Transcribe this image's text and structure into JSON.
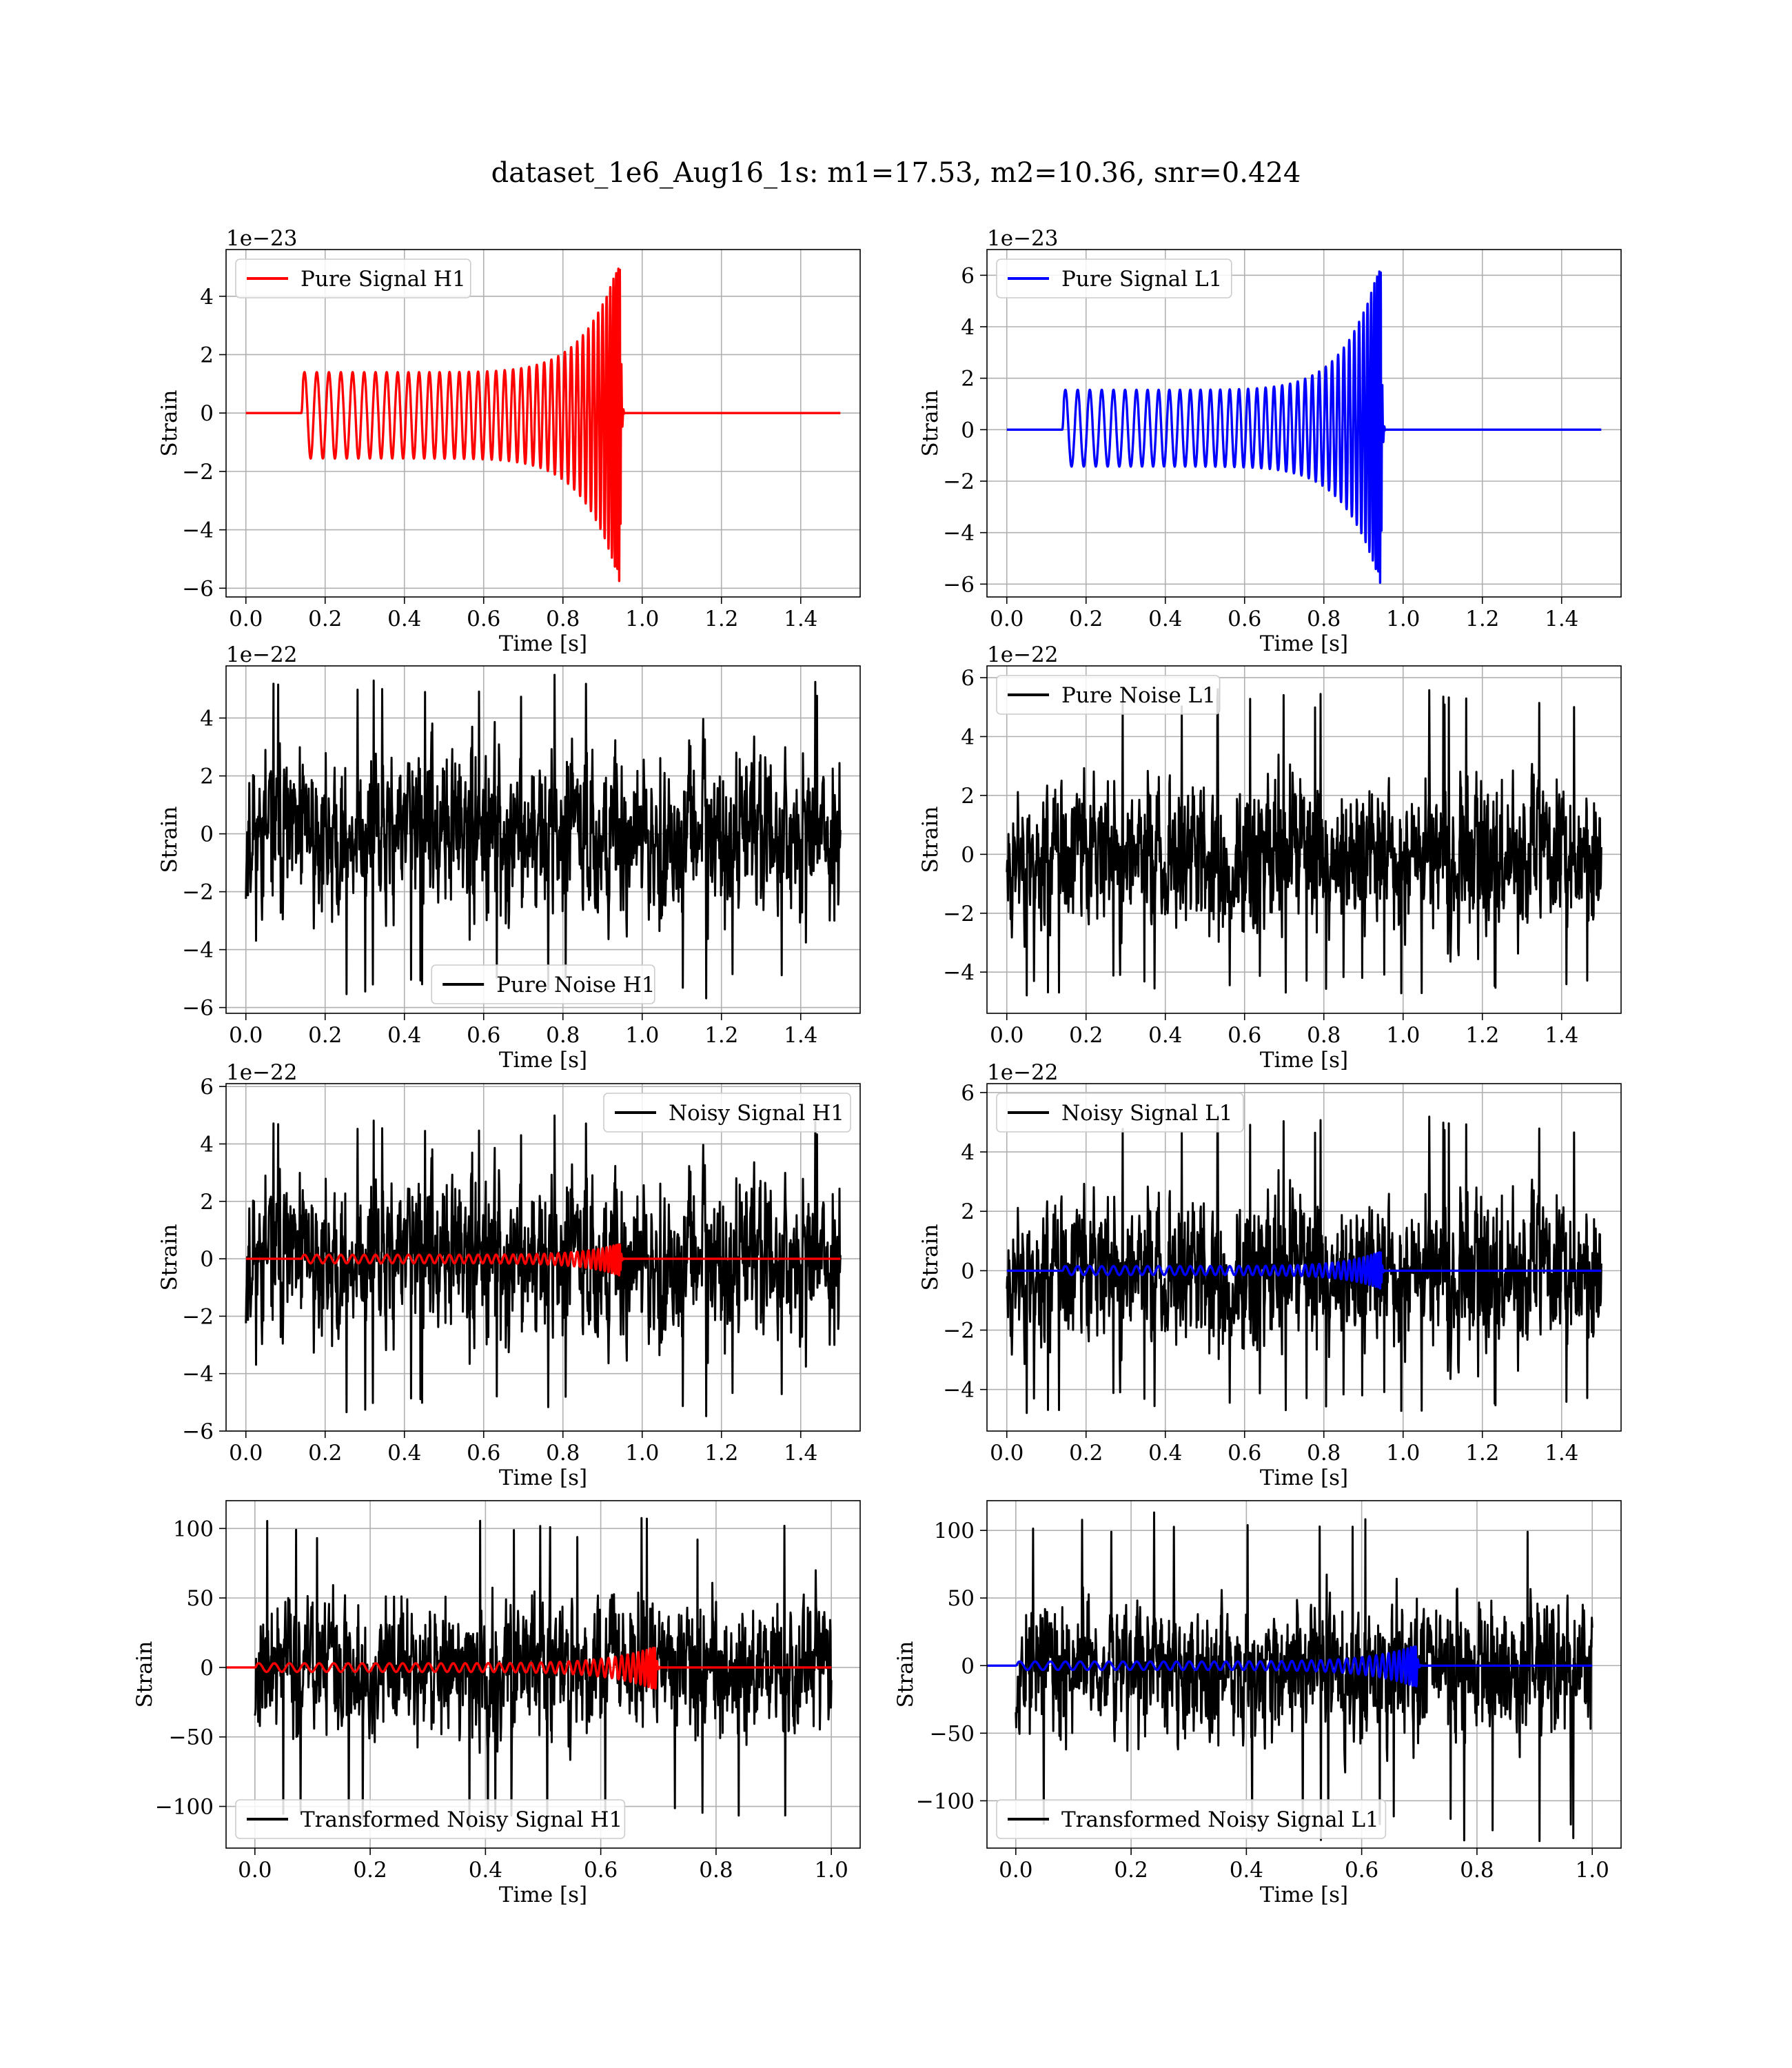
{
  "figure": {
    "title": "dataset_1e6_Aug16_1s: m1=17.53, m2=10.36, snr=0.424",
    "colors": {
      "h1": "#ff0000",
      "l1": "#0000ff",
      "noise": "#000000",
      "grid": "#b0b0b0"
    }
  },
  "chart_data": [
    {
      "id": "pure-signal-h1",
      "type": "line",
      "xlabel": "Time [s]",
      "ylabel": "Strain",
      "offset_text": "1e−23",
      "xlim": [
        -0.05,
        1.55
      ],
      "ylim": [
        -6.3,
        5.6
      ],
      "xticks": [
        0.0,
        0.2,
        0.4,
        0.6,
        0.8,
        1.0,
        1.2,
        1.4
      ],
      "xtick_labels": [
        "0.0",
        "0.2",
        "0.4",
        "0.6",
        "0.8",
        "1.0",
        "1.2",
        "1.4"
      ],
      "yticks": [
        -6,
        -4,
        -2,
        0,
        2,
        4
      ],
      "ytick_labels": [
        "−6",
        "−4",
        "−2",
        "0",
        "2",
        "4"
      ],
      "legend": "upper left",
      "series": [
        {
          "name": "Pure Signal H1",
          "kind": "chirp",
          "color": "#ff0000",
          "t_start": 0.14,
          "t_merge": 0.945,
          "t_end": 1.5,
          "amp_start": 1.4,
          "amp_peak": 5.3,
          "amp_min": -5.9,
          "cycles": 41
        }
      ]
    },
    {
      "id": "pure-signal-l1",
      "type": "line",
      "xlabel": "Time [s]",
      "ylabel": "Strain",
      "offset_text": "1e−23",
      "xlim": [
        -0.05,
        1.55
      ],
      "ylim": [
        -6.5,
        7.0
      ],
      "xticks": [
        0.0,
        0.2,
        0.4,
        0.6,
        0.8,
        1.0,
        1.2,
        1.4
      ],
      "xtick_labels": [
        "0.0",
        "0.2",
        "0.4",
        "0.6",
        "0.8",
        "1.0",
        "1.2",
        "1.4"
      ],
      "yticks": [
        -6,
        -4,
        -2,
        0,
        2,
        4,
        6
      ],
      "ytick_labels": [
        "−6",
        "−4",
        "−2",
        "0",
        "2",
        "4",
        "6"
      ],
      "legend": "upper left",
      "series": [
        {
          "name": "Pure Signal L1",
          "kind": "chirp",
          "color": "#0000ff",
          "t_start": 0.14,
          "t_merge": 0.945,
          "t_end": 1.5,
          "amp_start": 1.55,
          "amp_peak": 6.6,
          "amp_min": -6.1,
          "cycles": 41
        }
      ]
    },
    {
      "id": "pure-noise-h1",
      "type": "line",
      "xlabel": "Time [s]",
      "ylabel": "Strain",
      "offset_text": "1e−22",
      "xlim": [
        -0.05,
        1.55
      ],
      "ylim": [
        -6.2,
        5.8
      ],
      "xticks": [
        0.0,
        0.2,
        0.4,
        0.6,
        0.8,
        1.0,
        1.2,
        1.4
      ],
      "xtick_labels": [
        "0.0",
        "0.2",
        "0.4",
        "0.6",
        "0.8",
        "1.0",
        "1.2",
        "1.4"
      ],
      "yticks": [
        -6,
        -4,
        -2,
        0,
        2,
        4
      ],
      "ytick_labels": [
        "−6",
        "−4",
        "−2",
        "0",
        "2",
        "4"
      ],
      "legend": "lower center",
      "series": [
        {
          "name": "Pure Noise H1",
          "kind": "noise",
          "color": "#000000",
          "t_start": 0.0,
          "t_end": 1.5,
          "max": 5.5,
          "min": -5.7,
          "scale": 1.7,
          "seed": 11
        }
      ]
    },
    {
      "id": "pure-noise-l1",
      "type": "line",
      "xlabel": "Time [s]",
      "ylabel": "Strain",
      "offset_text": "1e−22",
      "xlim": [
        -0.05,
        1.55
      ],
      "ylim": [
        -5.4,
        6.4
      ],
      "xticks": [
        0.0,
        0.2,
        0.4,
        0.6,
        0.8,
        1.0,
        1.2,
        1.4
      ],
      "xtick_labels": [
        "0.0",
        "0.2",
        "0.4",
        "0.6",
        "0.8",
        "1.0",
        "1.2",
        "1.4"
      ],
      "yticks": [
        -4,
        -2,
        0,
        2,
        4,
        6
      ],
      "ytick_labels": [
        "−4",
        "−2",
        "0",
        "2",
        "4",
        "6"
      ],
      "legend": "upper left",
      "series": [
        {
          "name": "Pure Noise L1",
          "kind": "noise",
          "color": "#000000",
          "t_start": 0.0,
          "t_end": 1.5,
          "max": 5.8,
          "min": -4.8,
          "scale": 1.6,
          "seed": 23
        }
      ]
    },
    {
      "id": "noisy-signal-h1",
      "type": "line",
      "xlabel": "Time [s]",
      "ylabel": "Strain",
      "offset_text": "1e−22",
      "xlim": [
        -0.05,
        1.55
      ],
      "ylim": [
        -6.0,
        6.1
      ],
      "xticks": [
        0.0,
        0.2,
        0.4,
        0.6,
        0.8,
        1.0,
        1.2,
        1.4
      ],
      "xtick_labels": [
        "0.0",
        "0.2",
        "0.4",
        "0.6",
        "0.8",
        "1.0",
        "1.2",
        "1.4"
      ],
      "yticks": [
        -6,
        -4,
        -2,
        0,
        2,
        4,
        6
      ],
      "ytick_labels": [
        "−6",
        "−4",
        "−2",
        "0",
        "2",
        "4",
        "6"
      ],
      "legend": "upper right",
      "series": [
        {
          "name": "Noisy Signal H1",
          "kind": "noise",
          "color": "#000000",
          "t_start": 0.0,
          "t_end": 1.5,
          "max": 5.0,
          "min": -5.5,
          "scale": 1.7,
          "seed": 11
        },
        {
          "kind": "chirp",
          "color": "#ff0000",
          "t_start": 0.14,
          "t_merge": 0.945,
          "t_end": 1.5,
          "amp_start": 0.14,
          "amp_peak": 0.53,
          "amp_min": -0.59,
          "cycles": 41
        }
      ]
    },
    {
      "id": "noisy-signal-l1",
      "type": "line",
      "xlabel": "Time [s]",
      "ylabel": "Strain",
      "offset_text": "1e−22",
      "xlim": [
        -0.05,
        1.55
      ],
      "ylim": [
        -5.4,
        6.3
      ],
      "xticks": [
        0.0,
        0.2,
        0.4,
        0.6,
        0.8,
        1.0,
        1.2,
        1.4
      ],
      "xtick_labels": [
        "0.0",
        "0.2",
        "0.4",
        "0.6",
        "0.8",
        "1.0",
        "1.2",
        "1.4"
      ],
      "yticks": [
        -4,
        -2,
        0,
        2,
        4,
        6
      ],
      "ytick_labels": [
        "−4",
        "−2",
        "0",
        "2",
        "4",
        "6"
      ],
      "legend": "upper left",
      "series": [
        {
          "name": "Noisy Signal L1",
          "kind": "noise",
          "color": "#000000",
          "t_start": 0.0,
          "t_end": 1.5,
          "max": 5.4,
          "min": -4.8,
          "scale": 1.6,
          "seed": 23
        },
        {
          "kind": "chirp",
          "color": "#0000ff",
          "t_start": 0.14,
          "t_merge": 0.945,
          "t_end": 1.5,
          "amp_start": 0.155,
          "amp_peak": 0.66,
          "amp_min": -0.61,
          "cycles": 41
        }
      ]
    },
    {
      "id": "transformed-noisy-signal-h1",
      "type": "line",
      "xlabel": "Time [s]",
      "ylabel": "Strain",
      "offset_text": "",
      "xlim": [
        -0.05,
        1.05
      ],
      "ylim": [
        -130,
        120
      ],
      "xticks": [
        0.0,
        0.2,
        0.4,
        0.6,
        0.8,
        1.0
      ],
      "xtick_labels": [
        "0.0",
        "0.2",
        "0.4",
        "0.6",
        "0.8",
        "1.0"
      ],
      "yticks": [
        -100,
        -50,
        0,
        50,
        100
      ],
      "ytick_labels": [
        "−100",
        "−50",
        "0",
        "50",
        "100"
      ],
      "legend": "lower left",
      "series": [
        {
          "name": "Transformed Noisy Signal H1",
          "kind": "noise",
          "color": "#000000",
          "t_start": 0.0,
          "t_end": 1.0,
          "max": 108,
          "min": -118,
          "scale": 30,
          "seed": 37
        },
        {
          "kind": "chirp",
          "color": "#ff0000",
          "t_start": 0.0,
          "t_merge": 0.695,
          "t_end": 1.0,
          "amp_start": 3,
          "amp_peak": 15,
          "amp_min": -16,
          "cycles": 41
        }
      ]
    },
    {
      "id": "transformed-noisy-signal-l1",
      "type": "line",
      "xlabel": "Time [s]",
      "ylabel": "Strain",
      "offset_text": "",
      "xlim": [
        -0.05,
        1.05
      ],
      "ylim": [
        -135,
        122
      ],
      "xticks": [
        0.0,
        0.2,
        0.4,
        0.6,
        0.8,
        1.0
      ],
      "xtick_labels": [
        "0.0",
        "0.2",
        "0.4",
        "0.6",
        "0.8",
        "1.0"
      ],
      "yticks": [
        -100,
        -50,
        0,
        50,
        100
      ],
      "ytick_labels": [
        "−100",
        "−50",
        "0",
        "50",
        "100"
      ],
      "legend": "lower left",
      "series": [
        {
          "name": "Transformed Noisy Signal L1",
          "kind": "noise",
          "color": "#000000",
          "t_start": 0.0,
          "t_end": 1.0,
          "max": 115,
          "min": -130,
          "scale": 30,
          "seed": 53
        },
        {
          "kind": "chirp",
          "color": "#0000ff",
          "t_start": 0.0,
          "t_merge": 0.695,
          "t_end": 1.0,
          "amp_start": 3,
          "amp_peak": 15,
          "amp_min": -16,
          "cycles": 41
        }
      ]
    }
  ]
}
